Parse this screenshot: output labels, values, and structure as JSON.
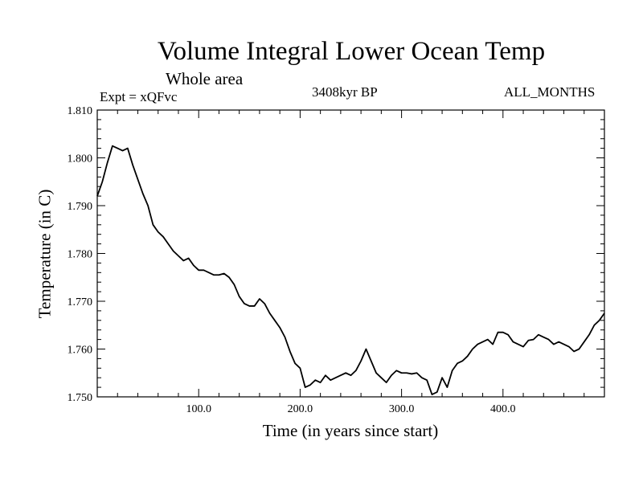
{
  "chart_data": {
    "type": "line",
    "title": "Volume Integral Lower Ocean Temp",
    "subtitle": "Whole area",
    "left_label": "Expt = xQFvc",
    "center_label": "3408kyr BP",
    "right_label": "ALL_MONTHS",
    "xlabel": "Time (in years since start)",
    "ylabel": "Temperature (in C)",
    "xlim": [
      0,
      500
    ],
    "ylim": [
      1.75,
      1.81
    ],
    "x_ticks": [
      100,
      200,
      300,
      400
    ],
    "x_tick_labels": [
      "100.0",
      "200.0",
      "300.0",
      "400.0"
    ],
    "y_ticks": [
      1.75,
      1.76,
      1.77,
      1.78,
      1.79,
      1.8,
      1.81
    ],
    "y_tick_labels": [
      "1.750",
      "1.760",
      "1.770",
      "1.780",
      "1.790",
      "1.800",
      "1.810"
    ],
    "grid": false,
    "series": [
      {
        "name": "temperature",
        "x": [
          0,
          5,
          10,
          15,
          20,
          25,
          30,
          35,
          40,
          45,
          50,
          55,
          60,
          65,
          70,
          75,
          80,
          85,
          90,
          95,
          100,
          105,
          110,
          115,
          120,
          125,
          130,
          135,
          140,
          145,
          150,
          155,
          160,
          165,
          170,
          175,
          180,
          185,
          190,
          195,
          200,
          205,
          210,
          215,
          220,
          225,
          230,
          235,
          240,
          245,
          250,
          255,
          260,
          265,
          270,
          275,
          280,
          285,
          290,
          295,
          300,
          305,
          310,
          315,
          320,
          325,
          330,
          335,
          340,
          345,
          350,
          355,
          360,
          365,
          370,
          375,
          380,
          385,
          390,
          395,
          400,
          405,
          410,
          415,
          420,
          425,
          430,
          435,
          440,
          445,
          450,
          455,
          460,
          465,
          470,
          475,
          480,
          485,
          490,
          495,
          500
        ],
        "values": [
          1.792,
          1.795,
          1.799,
          1.8025,
          1.802,
          1.8015,
          1.802,
          1.7985,
          1.7955,
          1.7925,
          1.79,
          1.786,
          1.7845,
          1.7835,
          1.782,
          1.7805,
          1.7795,
          1.7785,
          1.779,
          1.7775,
          1.7765,
          1.7765,
          1.776,
          1.7755,
          1.7755,
          1.7758,
          1.775,
          1.7735,
          1.771,
          1.7695,
          1.769,
          1.769,
          1.7705,
          1.7695,
          1.7675,
          1.766,
          1.7645,
          1.7625,
          1.7595,
          1.757,
          1.756,
          1.752,
          1.7525,
          1.7535,
          1.753,
          1.7545,
          1.7535,
          1.754,
          1.7545,
          1.755,
          1.7545,
          1.7555,
          1.7575,
          1.76,
          1.7575,
          1.755,
          1.754,
          1.753,
          1.7545,
          1.7555,
          1.755,
          1.755,
          1.7548,
          1.755,
          1.754,
          1.7535,
          1.7505,
          1.751,
          1.754,
          1.752,
          1.7555,
          1.757,
          1.7575,
          1.7585,
          1.76,
          1.761,
          1.7615,
          1.762,
          1.761,
          1.7635,
          1.7635,
          1.763,
          1.7615,
          1.761,
          1.7605,
          1.7618,
          1.762,
          1.763,
          1.7625,
          1.762,
          1.761,
          1.7615,
          1.761,
          1.7605,
          1.7595,
          1.76,
          1.7615,
          1.763,
          1.765,
          1.766,
          1.7675
        ]
      }
    ]
  },
  "colors": {
    "line": "#000000",
    "background": "#ffffff"
  }
}
